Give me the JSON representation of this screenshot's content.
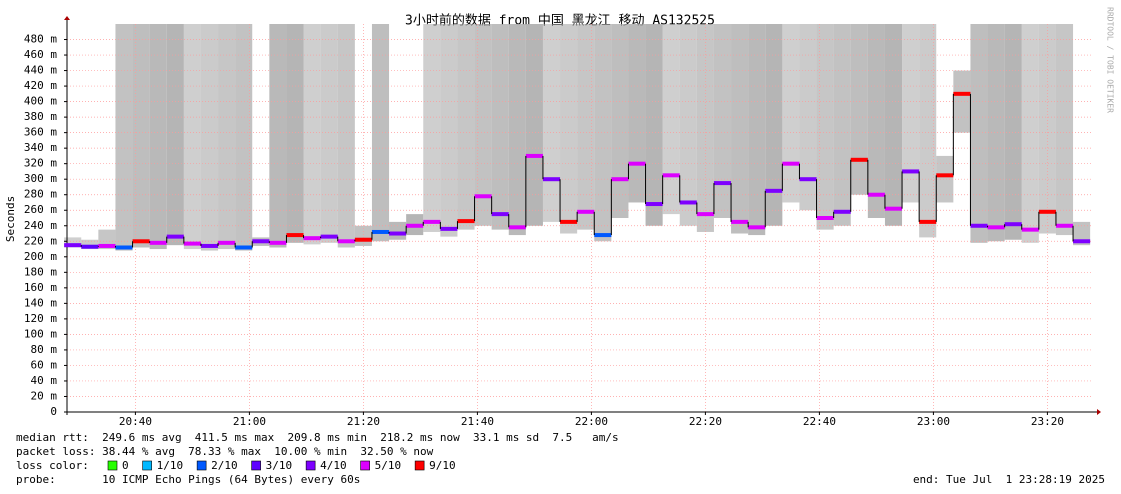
{
  "chart_data": {
    "type": "smokeping",
    "title": "3小时前的数据 from 中国 黑龙江 移动 AS132525",
    "y_label": "Seconds",
    "side_label": "RRDTOOL / TOBI OETIKER",
    "ylim": [
      0,
      500
    ],
    "yticks": [
      0,
      {
        "value": 20,
        "label": "20 m"
      },
      {
        "value": 40,
        "label": "40 m"
      },
      {
        "value": 60,
        "label": "60 m"
      },
      {
        "value": 80,
        "label": "80 m"
      },
      {
        "value": 100,
        "label": "100 m"
      },
      {
        "value": 120,
        "label": "120 m"
      },
      {
        "value": 140,
        "label": "140 m"
      },
      {
        "value": 160,
        "label": "160 m"
      },
      {
        "value": 180,
        "label": "180 m"
      },
      {
        "value": 200,
        "label": "200 m"
      },
      {
        "value": 220,
        "label": "220 m"
      },
      {
        "value": 240,
        "label": "240 m"
      },
      {
        "value": 260,
        "label": "260 m"
      },
      {
        "value": 280,
        "label": "280 m"
      },
      {
        "value": 300,
        "label": "300 m"
      },
      {
        "value": 320,
        "label": "320 m"
      },
      {
        "value": 340,
        "label": "340 m"
      },
      {
        "value": 360,
        "label": "360 m"
      },
      {
        "value": 380,
        "label": "380 m"
      },
      {
        "value": 400,
        "label": "400 m"
      },
      {
        "value": 420,
        "label": "420 m"
      },
      {
        "value": 440,
        "label": "440 m"
      },
      {
        "value": 460,
        "label": "460 m"
      },
      {
        "value": 480,
        "label": "480 m"
      }
    ],
    "xlim": [
      "20:28",
      "23:28"
    ],
    "xticks": [
      "20:40",
      "21:00",
      "21:20",
      "21:40",
      "22:00",
      "22:20",
      "22:40",
      "23:00",
      "23:20"
    ],
    "grid": true,
    "x": [
      "20:29",
      "20:32",
      "20:35",
      "20:38",
      "20:41",
      "20:44",
      "20:47",
      "20:50",
      "20:53",
      "20:56",
      "20:59",
      "21:02",
      "21:05",
      "21:08",
      "21:11",
      "21:14",
      "21:17",
      "21:20",
      "21:23",
      "21:26",
      "21:29",
      "21:32",
      "21:35",
      "21:38",
      "21:41",
      "21:44",
      "21:47",
      "21:50",
      "21:53",
      "21:56",
      "21:59",
      "22:02",
      "22:05",
      "22:08",
      "22:11",
      "22:14",
      "22:17",
      "22:20",
      "22:23",
      "22:26",
      "22:29",
      "22:32",
      "22:35",
      "22:38",
      "22:41",
      "22:44",
      "22:47",
      "22:50",
      "22:53",
      "22:56",
      "22:59",
      "23:02",
      "23:05",
      "23:08",
      "23:11",
      "23:14",
      "23:17",
      "23:20",
      "23:23",
      "23:26"
    ],
    "median": [
      215,
      213,
      214,
      212,
      220,
      218,
      226,
      217,
      214,
      218,
      212,
      220,
      218,
      228,
      224,
      226,
      220,
      222,
      232,
      230,
      240,
      245,
      236,
      246,
      278,
      255,
      238,
      330,
      300,
      245,
      258,
      228,
      300,
      320,
      268,
      305,
      270,
      255,
      295,
      245,
      238,
      285,
      320,
      300,
      250,
      258,
      325,
      280,
      262,
      310,
      245,
      305,
      410,
      240,
      238,
      242,
      235,
      258,
      240,
      220
    ],
    "smoke_low": [
      212,
      210,
      210,
      208,
      212,
      210,
      215,
      210,
      208,
      210,
      208,
      214,
      212,
      218,
      216,
      218,
      212,
      214,
      220,
      222,
      228,
      232,
      226,
      235,
      240,
      235,
      228,
      240,
      245,
      230,
      235,
      220,
      250,
      270,
      240,
      255,
      240,
      232,
      250,
      230,
      228,
      240,
      270,
      260,
      235,
      240,
      280,
      250,
      240,
      270,
      225,
      270,
      360,
      218,
      220,
      222,
      218,
      230,
      228,
      215
    ],
    "smoke_high": [
      225,
      222,
      235,
      500,
      500,
      500,
      500,
      500,
      500,
      500,
      500,
      225,
      500,
      500,
      500,
      500,
      500,
      240,
      500,
      245,
      255,
      500,
      500,
      500,
      500,
      500,
      500,
      500,
      500,
      500,
      500,
      500,
      500,
      500,
      500,
      500,
      500,
      500,
      500,
      500,
      500,
      500,
      500,
      500,
      500,
      500,
      500,
      500,
      500,
      500,
      500,
      330,
      440,
      500,
      500,
      500,
      500,
      500,
      500,
      245
    ],
    "loss": [
      4,
      3,
      5,
      2,
      9,
      5,
      4,
      5,
      4,
      5,
      2,
      4,
      5,
      9,
      5,
      4,
      5,
      9,
      2,
      4,
      5,
      5,
      4,
      9,
      5,
      4,
      5,
      5,
      4,
      9,
      5,
      2,
      5,
      5,
      4,
      5,
      4,
      5,
      4,
      5,
      5,
      4,
      5,
      4,
      5,
      4,
      9,
      5,
      5,
      4,
      9,
      9,
      9,
      4,
      5,
      4,
      5,
      9,
      5,
      4
    ],
    "smoke_color": "#a8a8a8",
    "loss_colors": [
      {
        "label": "0",
        "color": "#26ff00"
      },
      {
        "label": "1/10",
        "color": "#00b8ff"
      },
      {
        "label": "2/10",
        "color": "#0059ff"
      },
      {
        "label": "3/10",
        "color": "#5e00ff"
      },
      {
        "label": "4/10",
        "color": "#7e00ff"
      },
      {
        "label": "5/10",
        "color": "#dd00ff"
      },
      {
        "label": "9/10",
        "color": "#ff0000"
      }
    ],
    "stats": [
      "median rtt:  249.6 ms avg  411.5 ms max  209.8 ms min  218.2 ms now  33.1 ms sd  7.5   am/s",
      "packet loss: 38.44 % avg  78.33 % max  10.00 % min  32.50 % now"
    ],
    "legend_title": "loss color:",
    "probe": "probe:       10 ICMP Echo Pings (64 Bytes) every 60s",
    "end": "end: Tue Jul  1 23:28:19 2025"
  }
}
